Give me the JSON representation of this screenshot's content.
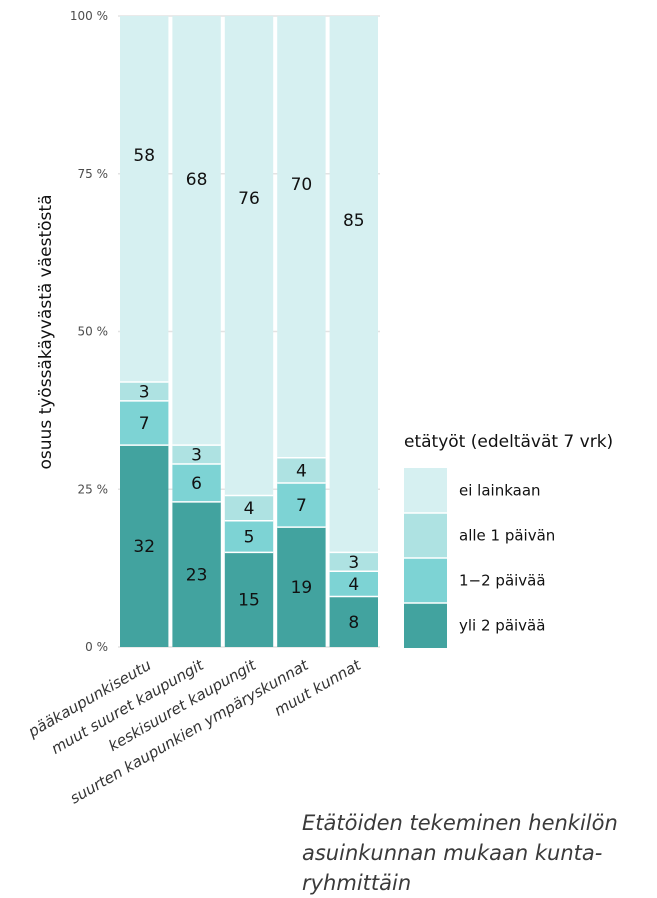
{
  "chart_data": {
    "type": "bar",
    "stacked": true,
    "categories": [
      "pääkaupunkiseutu",
      "muut suuret kaupungit",
      "keskisuuret kaupungit",
      "suurten kaupunkien ympäryskunnat",
      "muut kunnat"
    ],
    "series": [
      {
        "name": "yli 2 päivää",
        "color": "#42a39f",
        "values": [
          32,
          23,
          15,
          19,
          8
        ]
      },
      {
        "name": "1−2 päivää",
        "color": "#7dd3d4",
        "values": [
          7,
          6,
          5,
          7,
          4
        ]
      },
      {
        "name": "alle 1 päivän",
        "color": "#aee2e2",
        "values": [
          3,
          3,
          4,
          4,
          3
        ]
      },
      {
        "name": "ei lainkaan",
        "color": "#d6f0f1",
        "values": [
          58,
          68,
          76,
          70,
          85
        ]
      }
    ],
    "ylabel": "osuus työssäkäyvästä väestöstä",
    "ylim": [
      0,
      100
    ],
    "yticks": [
      0,
      25,
      50,
      75,
      100
    ],
    "ytick_labels": [
      "0 %",
      "25 %",
      "50 %",
      "75 %",
      "100 %"
    ],
    "legend_title": "etätyöt (edeltävät 7 vrk)",
    "legend_order": [
      "ei lainkaan",
      "alle 1 päivän",
      "1−2 päivää",
      "yli 2 päivää"
    ],
    "legend_position": "right",
    "grid": true
  },
  "caption": "Etätöiden tekeminen henkilön asuinkunnan mukaan kunta-ryhmittäin"
}
